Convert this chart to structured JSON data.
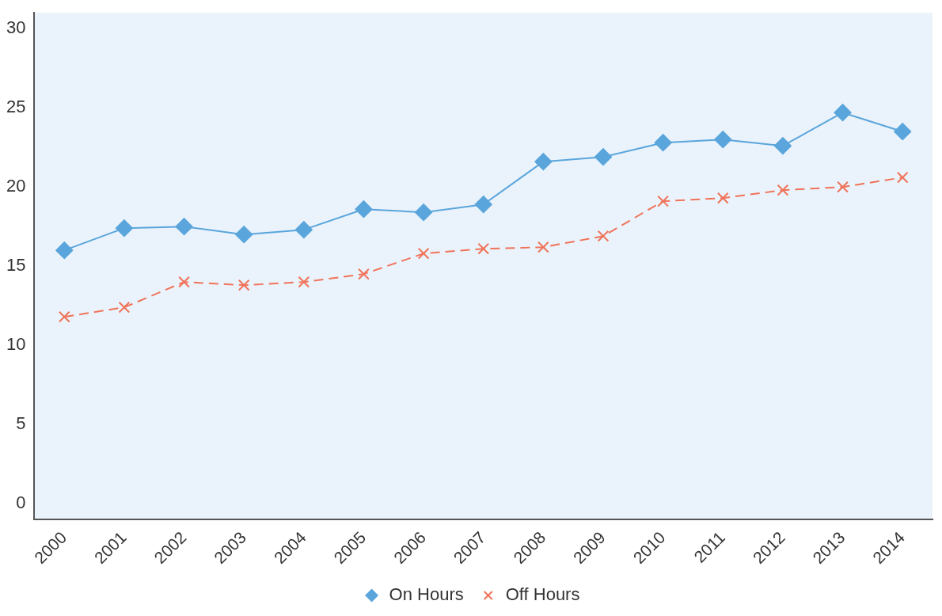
{
  "chart_data": {
    "type": "line",
    "categories": [
      "2000",
      "2001",
      "2002",
      "2003",
      "2004",
      "2005",
      "2006",
      "2007",
      "2008",
      "2009",
      "2010",
      "2011",
      "2012",
      "2013",
      "2014"
    ],
    "series": [
      {
        "name": "On Hours",
        "color": "#5aa5dc",
        "marker": "diamond",
        "line_style": "solid",
        "values": [
          16.0,
          17.4,
          17.5,
          17.0,
          17.3,
          18.6,
          18.4,
          18.9,
          21.6,
          21.9,
          22.8,
          23.0,
          22.6,
          24.7,
          23.5
        ]
      },
      {
        "name": "Off Hours",
        "color": "#f0735a",
        "marker": "cross",
        "line_style": "dashed",
        "values": [
          11.8,
          12.4,
          14.0,
          13.8,
          14.0,
          14.5,
          15.8,
          16.1,
          16.2,
          16.9,
          19.1,
          19.3,
          19.8,
          20.0,
          20.6
        ]
      }
    ],
    "ylim": [
      -1,
      31
    ],
    "yticks": [
      0,
      5,
      10,
      15,
      20,
      25,
      30
    ],
    "grid": false,
    "legend": "bottom"
  }
}
